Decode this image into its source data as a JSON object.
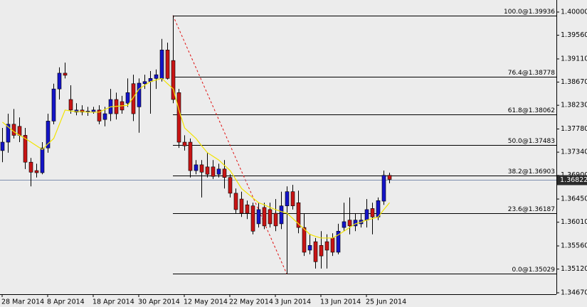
{
  "chart_data": {
    "type": "candlestick",
    "categories": [
      "28 Mar 2014",
      null,
      null,
      null,
      null,
      null,
      null,
      null,
      "8 Apr 2014",
      null,
      null,
      null,
      null,
      null,
      null,
      null,
      "18 Apr 2014",
      null,
      null,
      null,
      null,
      null,
      null,
      null,
      "30 Apr 2014",
      null,
      null,
      null,
      null,
      null,
      null,
      null,
      "12 May 2014",
      null,
      null,
      null,
      null,
      null,
      null,
      null,
      "22 May 2014",
      null,
      null,
      null,
      null,
      null,
      null,
      null,
      "3 Jun 2014",
      null,
      null,
      null,
      null,
      null,
      null,
      null,
      "13 Jun 2014",
      null,
      null,
      null,
      null,
      null,
      null,
      null,
      "25 Jun 2014",
      null,
      null,
      null,
      null
    ],
    "open": [
      1.3737,
      1.3753,
      1.3787,
      1.3783,
      1.3766,
      1.3715,
      1.3699,
      1.3695,
      1.3742,
      1.3793,
      1.3854,
      1.3884,
      1.3834,
      1.381,
      1.3814,
      1.381,
      1.381,
      1.3814,
      1.3796,
      1.3807,
      1.3834,
      1.383,
      1.3827,
      1.3864,
      1.382,
      1.3864,
      1.3868,
      1.3874,
      1.3874,
      1.3928,
      1.3908,
      1.3847,
      1.3753,
      1.3753,
      1.3699,
      1.371,
      1.3706,
      1.3706,
      1.3692,
      1.3702,
      1.3686,
      1.3656,
      1.3645,
      1.3634,
      1.3632,
      1.3598,
      1.3629,
      1.3625,
      1.3618,
      1.3598,
      1.3632,
      1.3659,
      1.3638,
      1.3591,
      1.3548,
      1.3564,
      1.3557,
      1.3564,
      1.3571,
      1.3544,
      1.3591,
      1.3605,
      1.3594,
      1.3598,
      1.3605,
      1.3627,
      1.3611,
      1.3641,
      1.369
    ],
    "high": [
      1.378,
      1.3807,
      1.3816,
      1.38,
      1.378,
      1.3723,
      1.3712,
      1.3753,
      1.3807,
      1.3864,
      1.3895,
      1.3904,
      1.3861,
      1.3827,
      1.3823,
      1.382,
      1.382,
      1.3823,
      1.382,
      1.3854,
      1.3847,
      1.3841,
      1.3874,
      1.3881,
      1.3874,
      1.3881,
      1.3888,
      1.3891,
      1.3949,
      1.3942,
      1.39936,
      1.3854,
      1.3766,
      1.376,
      1.3719,
      1.3719,
      1.3733,
      1.3719,
      1.3712,
      1.3719,
      1.3692,
      1.3665,
      1.3659,
      1.3642,
      1.3638,
      1.3638,
      1.3638,
      1.3638,
      1.3645,
      1.3659,
      1.3669,
      1.3672,
      1.3661,
      1.3618,
      1.3578,
      1.3571,
      1.3584,
      1.3578,
      1.358,
      1.3598,
      1.3638,
      1.3648,
      1.3618,
      1.3618,
      1.3645,
      1.3638,
      1.3648,
      1.3699,
      1.3695
    ],
    "low": [
      1.3715,
      1.3733,
      1.376,
      1.3753,
      1.3702,
      1.3669,
      1.3686,
      1.3692,
      1.3733,
      1.3787,
      1.3834,
      1.3874,
      1.3807,
      1.3804,
      1.3804,
      1.3803,
      1.3807,
      1.3787,
      1.3783,
      1.3793,
      1.3796,
      1.3807,
      1.382,
      1.3793,
      1.3771,
      1.3854,
      1.3807,
      1.3854,
      1.3868,
      1.3872,
      1.3827,
      1.3742,
      1.3737,
      1.3686,
      1.3692,
      1.3648,
      1.3686,
      1.3683,
      1.3686,
      1.3665,
      1.3648,
      1.3618,
      1.3611,
      1.3607,
      1.3578,
      1.3591,
      1.3588,
      1.3591,
      1.3584,
      1.3588,
      1.35029,
      1.3625,
      1.358,
      1.3537,
      1.354,
      1.3513,
      1.3513,
      1.3513,
      1.3537,
      1.354,
      1.3584,
      1.3578,
      1.3584,
      1.3591,
      1.3591,
      1.3578,
      1.3605,
      1.3634,
      1.3675
    ],
    "close": [
      1.3753,
      1.3787,
      1.3766,
      1.3766,
      1.3715,
      1.3696,
      1.3695,
      1.3742,
      1.3793,
      1.3854,
      1.3884,
      1.388,
      1.3814,
      1.3814,
      1.381,
      1.3812,
      1.3814,
      1.3793,
      1.3807,
      1.3834,
      1.3807,
      1.3814,
      1.3847,
      1.3807,
      1.3865,
      1.3868,
      1.3874,
      1.3881,
      1.3928,
      1.3874,
      1.3834,
      1.3753,
      1.3746,
      1.3699,
      1.371,
      1.3696,
      1.3692,
      1.3688,
      1.3702,
      1.3686,
      1.3656,
      1.3625,
      1.3618,
      1.3618,
      1.3584,
      1.3625,
      1.3594,
      1.3598,
      1.3594,
      1.3632,
      1.3659,
      1.3632,
      1.3591,
      1.3544,
      1.3557,
      1.3526,
      1.3537,
      1.3548,
      1.3544,
      1.3584,
      1.3602,
      1.3594,
      1.3605,
      1.3605,
      1.3625,
      1.3611,
      1.3642,
      1.369,
      1.36822
    ],
    "up_color": "#1414c8",
    "down_color": "#c81414",
    "ma": {
      "color": "#f2e400",
      "values": [
        1.3791,
        1.3782,
        1.3773,
        1.3766,
        1.376,
        1.3753,
        1.3746,
        1.3739,
        1.375,
        1.376,
        1.3787,
        1.3814,
        1.3812,
        1.3811,
        1.3811,
        1.381,
        1.381,
        1.381,
        1.3815,
        1.382,
        1.3821,
        1.3822,
        1.3823,
        1.3838,
        1.3854,
        1.3861,
        1.3868,
        1.3871,
        1.3874,
        1.3864,
        1.3854,
        1.3814,
        1.378,
        1.377,
        1.376,
        1.3746,
        1.3733,
        1.3726,
        1.3719,
        1.3709,
        1.3699,
        1.3682,
        1.3665,
        1.3656,
        1.3647,
        1.3638,
        1.3634,
        1.3629,
        1.3625,
        1.3621,
        1.3618,
        1.3608,
        1.3598,
        1.3588,
        1.3578,
        1.3574,
        1.3571,
        1.3571,
        1.3571,
        1.3577,
        1.3584,
        1.3591,
        1.3598,
        1.3601,
        1.3605,
        1.3608,
        1.3611,
        1.3625,
        1.3638
      ]
    },
    "fib_levels": [
      {
        "label": "100.0@1.39936",
        "value": 1.39936
      },
      {
        "label": "76.4@1.38778",
        "value": 1.38778
      },
      {
        "label": "61.8@1.38062",
        "value": 1.38062
      },
      {
        "label": "50.0@1.37483",
        "value": 1.37483
      },
      {
        "label": "38.2@1.36903",
        "value": 1.36903
      },
      {
        "label": "23.6@1.36187",
        "value": 1.36187
      },
      {
        "label": "0.0@1.35029",
        "value": 1.35029
      }
    ],
    "fib_color": "#000000",
    "trend_color": "#e01010",
    "current_price": 1.36822,
    "ylim": [
      1.34643,
      1.40229
    ],
    "yticks": [
      {
        "value": 1.4,
        "label": "1.40000"
      },
      {
        "value": 1.3956,
        "label": "1.39560"
      },
      {
        "value": 1.3911,
        "label": "1.39110"
      },
      {
        "value": 1.3867,
        "label": "1.38670"
      },
      {
        "value": 1.3823,
        "label": "1.38230"
      },
      {
        "value": 1.3778,
        "label": "1.37780"
      },
      {
        "value": 1.3734,
        "label": "1.37340"
      },
      {
        "value": 1.369,
        "label": "1.36900"
      },
      {
        "value": 1.3645,
        "label": "1.36450"
      },
      {
        "value": 1.3601,
        "label": "1.36010"
      },
      {
        "value": 1.3556,
        "label": "1.35560"
      },
      {
        "value": 1.3512,
        "label": "1.35120"
      },
      {
        "value": 1.3467,
        "label": "1.34670"
      }
    ],
    "grid": false
  }
}
